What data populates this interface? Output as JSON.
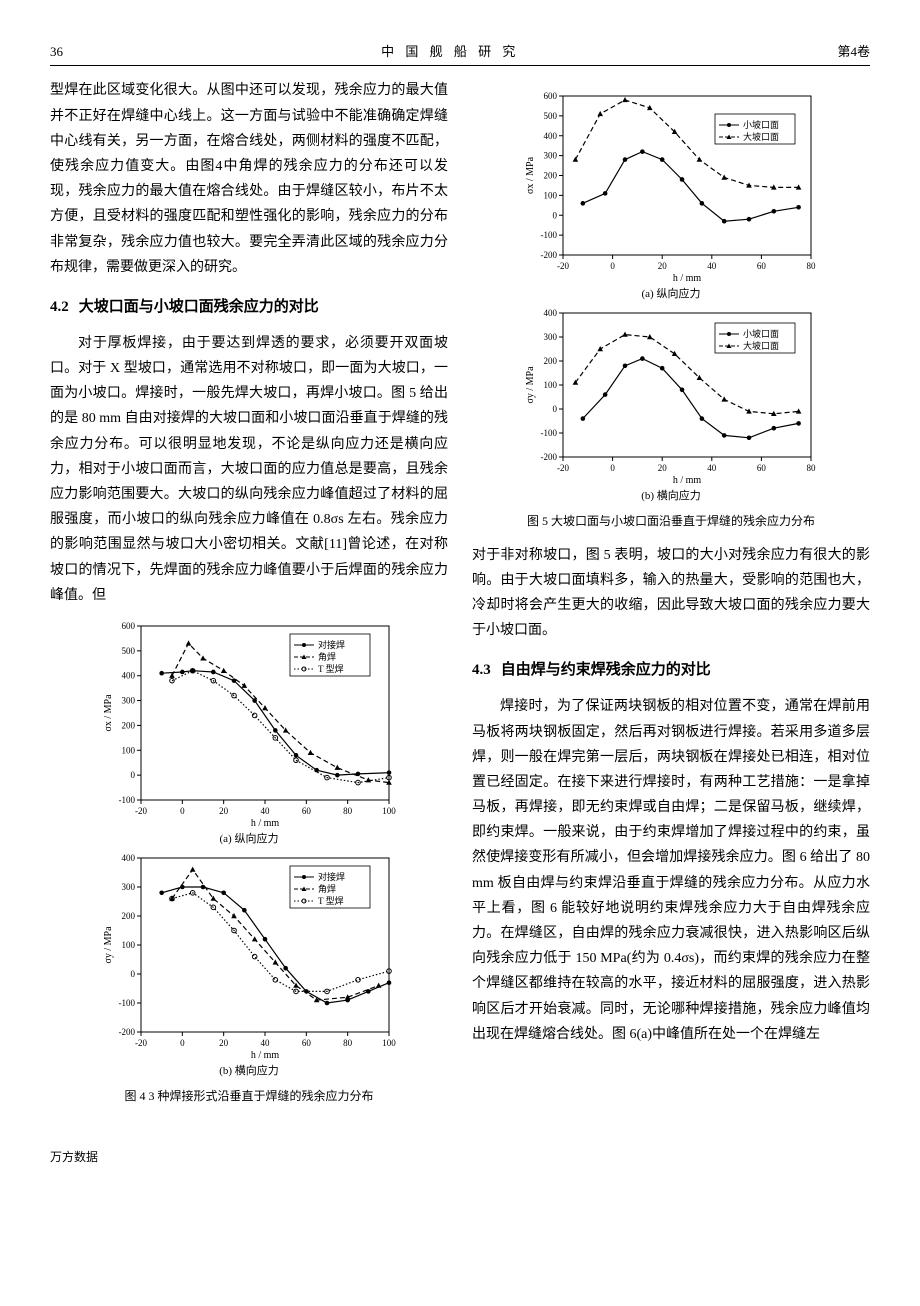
{
  "header": {
    "page": "36",
    "journal": "中 国 舰 船 研 究",
    "volume": "第4卷"
  },
  "left": {
    "para1": "型焊在此区域变化很大。从图中还可以发现，残余应力的最大值并不正好在焊缝中心线上。这一方面与试验中不能准确确定焊缝中心线有关，另一方面，在熔合线处，两侧材料的强度不匹配，使残余应力值变大。由图4中角焊的残余应力的分布还可以发现，残余应力的最大值在熔合线处。由于焊缝区较小，布片不太方便，且受材料的强度匹配和塑性强化的影响，残余应力的分布非常复杂，残余应力值也较大。要完全弄清此区域的残余应力分布规律，需要做更深入的研究。",
    "sec42": {
      "num": "4.2",
      "title": "大坡口面与小坡口面残余应力的对比"
    },
    "para2": "对于厚板焊接，由于要达到焊透的要求，必须要开双面坡口。对于 X 型坡口，通常选用不对称坡口，即一面为大坡口，一面为小坡口。焊接时，一般先焊大坡口，再焊小坡口。图 5 给出的是 80 mm 自由对接焊的大坡口面和小坡口面沿垂直于焊缝的残余应力分布。可以很明显地发现，不论是纵向应力还是横向应力，相对于小坡口面而言，大坡口面的应力值总是要高，且残余应力影响范围要大。大坡口的纵向残余应力峰值超过了材料的屈服强度，而小坡口的纵向残余应力峰值在 0.8σs 左右。残余应力的影响范围显然与坡口大小密切相关。文献[11]曾论述，在对称坡口的情况下，先焊面的残余应力峰值要小于后焊面的残余应力峰值。但",
    "fig4": {
      "caption": "图 4  3 种焊接形式沿垂直于焊缝的残余应力分布",
      "sub_a": "(a) 纵向应力",
      "sub_b": "(b) 横向应力",
      "xlabel": "h / mm",
      "ylabel_a": "σx / MPa",
      "ylabel_b": "σy / MPa",
      "legend": [
        "对接焊",
        "角焊",
        "T 型焊"
      ],
      "a": {
        "xlim": [
          -20,
          100
        ],
        "xticks": [
          -20,
          0,
          20,
          40,
          60,
          80,
          100
        ],
        "ylim": [
          -100,
          600
        ],
        "yticks": [
          -100,
          0,
          100,
          200,
          300,
          400,
          500,
          600
        ],
        "series": {
          "butt": [
            [
              -10,
              410
            ],
            [
              0,
              415
            ],
            [
              5,
              420
            ],
            [
              15,
              415
            ],
            [
              25,
              380
            ],
            [
              35,
              300
            ],
            [
              45,
              180
            ],
            [
              55,
              80
            ],
            [
              65,
              20
            ],
            [
              75,
              0
            ],
            [
              85,
              5
            ],
            [
              100,
              10
            ]
          ],
          "fillet": [
            [
              -5,
              400
            ],
            [
              3,
              530
            ],
            [
              10,
              470
            ],
            [
              20,
              420
            ],
            [
              30,
              360
            ],
            [
              40,
              270
            ],
            [
              50,
              180
            ],
            [
              62,
              90
            ],
            [
              75,
              30
            ],
            [
              90,
              -20
            ],
            [
              100,
              -30
            ]
          ],
          "tee": [
            [
              -5,
              380
            ],
            [
              5,
              420
            ],
            [
              15,
              380
            ],
            [
              25,
              320
            ],
            [
              35,
              240
            ],
            [
              45,
              150
            ],
            [
              55,
              60
            ],
            [
              70,
              -10
            ],
            [
              85,
              -30
            ],
            [
              100,
              -10
            ]
          ]
        },
        "markers": {
          "butt": "●",
          "fillet": "▲",
          "tee": "○"
        }
      },
      "b": {
        "xlim": [
          -20,
          100
        ],
        "xticks": [
          -20,
          0,
          20,
          40,
          60,
          80,
          100
        ],
        "ylim": [
          -200,
          400
        ],
        "yticks": [
          -200,
          -100,
          0,
          100,
          200,
          300,
          400
        ],
        "series": {
          "butt": [
            [
              -10,
              280
            ],
            [
              0,
              300
            ],
            [
              10,
              300
            ],
            [
              20,
              280
            ],
            [
              30,
              220
            ],
            [
              40,
              120
            ],
            [
              50,
              20
            ],
            [
              60,
              -60
            ],
            [
              70,
              -100
            ],
            [
              80,
              -90
            ],
            [
              90,
              -60
            ],
            [
              100,
              -30
            ]
          ],
          "fillet": [
            [
              -5,
              260
            ],
            [
              5,
              360
            ],
            [
              15,
              260
            ],
            [
              25,
              200
            ],
            [
              35,
              120
            ],
            [
              45,
              40
            ],
            [
              55,
              -40
            ],
            [
              65,
              -90
            ],
            [
              80,
              -80
            ],
            [
              95,
              -40
            ]
          ],
          "tee": [
            [
              -5,
              260
            ],
            [
              5,
              280
            ],
            [
              15,
              230
            ],
            [
              25,
              150
            ],
            [
              35,
              60
            ],
            [
              45,
              -20
            ],
            [
              55,
              -60
            ],
            [
              70,
              -60
            ],
            [
              85,
              -20
            ],
            [
              100,
              10
            ]
          ]
        },
        "markers": {
          "butt": "●",
          "fillet": "▲",
          "tee": "○"
        }
      },
      "styles": {
        "butt": "solid",
        "fillet": "dashed",
        "tee": "dotted",
        "color": "#000000",
        "width": 1.2
      }
    }
  },
  "right": {
    "fig5": {
      "caption": "图 5  大坡口面与小坡口面沿垂直于焊缝的残余应力分布",
      "sub_a": "(a) 纵向应力",
      "sub_b": "(b) 横向应力",
      "xlabel": "h / mm",
      "ylabel_a": "σx / MPa",
      "ylabel_b": "σy / MPa",
      "legend": [
        "小坡口面",
        "大坡口面"
      ],
      "a": {
        "xlim": [
          -20,
          80
        ],
        "xticks": [
          -20,
          0,
          20,
          40,
          60,
          80
        ],
        "ylim": [
          -200,
          600
        ],
        "yticks": [
          -200,
          -100,
          0,
          100,
          200,
          300,
          400,
          500,
          600
        ],
        "small": [
          [
            -12,
            60
          ],
          [
            -3,
            110
          ],
          [
            5,
            280
          ],
          [
            12,
            320
          ],
          [
            20,
            280
          ],
          [
            28,
            180
          ],
          [
            36,
            60
          ],
          [
            45,
            -30
          ],
          [
            55,
            -20
          ],
          [
            65,
            20
          ],
          [
            75,
            40
          ]
        ],
        "large": [
          [
            -15,
            280
          ],
          [
            -5,
            510
          ],
          [
            5,
            580
          ],
          [
            15,
            540
          ],
          [
            25,
            420
          ],
          [
            35,
            280
          ],
          [
            45,
            190
          ],
          [
            55,
            150
          ],
          [
            65,
            140
          ],
          [
            75,
            140
          ]
        ]
      },
      "b": {
        "xlim": [
          -20,
          80
        ],
        "xticks": [
          -20,
          0,
          20,
          40,
          60,
          80
        ],
        "ylim": [
          -200,
          400
        ],
        "yticks": [
          -200,
          -100,
          0,
          100,
          200,
          300,
          400
        ],
        "small": [
          [
            -12,
            -40
          ],
          [
            -3,
            60
          ],
          [
            5,
            180
          ],
          [
            12,
            210
          ],
          [
            20,
            170
          ],
          [
            28,
            80
          ],
          [
            36,
            -40
          ],
          [
            45,
            -110
          ],
          [
            55,
            -120
          ],
          [
            65,
            -80
          ],
          [
            75,
            -60
          ]
        ],
        "large": [
          [
            -15,
            110
          ],
          [
            -5,
            250
          ],
          [
            5,
            310
          ],
          [
            15,
            300
          ],
          [
            25,
            230
          ],
          [
            35,
            130
          ],
          [
            45,
            40
          ],
          [
            55,
            -10
          ],
          [
            65,
            -20
          ],
          [
            75,
            -10
          ]
        ]
      },
      "styles": {
        "small_marker": "●",
        "large_marker": "▲",
        "small_dash": "solid",
        "large_dash": "dashed",
        "color": "#000000",
        "width": 1.2
      }
    },
    "para1": "对于非对称坡口，图 5 表明，坡口的大小对残余应力有很大的影响。由于大坡口面填料多，输入的热量大，受影响的范围也大，冷却时将会产生更大的收缩，因此导致大坡口面的残余应力要大于小坡口面。",
    "sec43": {
      "num": "4.3",
      "title": "自由焊与约束焊残余应力的对比"
    },
    "para2": "焊接时，为了保证两块钢板的相对位置不变，通常在焊前用马板将两块钢板固定，然后再对钢板进行焊接。若采用多道多层焊，则一般在焊完第一层后，两块钢板在焊接处已相连，相对位置已经固定。在接下来进行焊接时，有两种工艺措施：一是拿掉马板，再焊接，即无约束焊或自由焊；二是保留马板，继续焊，即约束焊。一般来说，由于约束焊增加了焊接过程中的约束，虽然使焊接变形有所减小，但会增加焊接残余应力。图 6 给出了 80 mm 板自由焊与约束焊沿垂直于焊缝的残余应力分布。从应力水平上看，图 6 能较好地说明约束焊残余应力大于自由焊残余应力。在焊缝区，自由焊的残余应力衰减很快，进入热影响区后纵向残余应力低于 150 MPa(约为 0.4σs)，而约束焊的残余应力在整个焊缝区都维持在较高的水平，接近材料的屈服强度，进入热影响区后才开始衰减。同时，无论哪种焊接措施，残余应力峰值均出现在焊缝熔合线处。图 6(a)中峰值所在处一个在焊缝左"
  },
  "footer": "万方数据"
}
